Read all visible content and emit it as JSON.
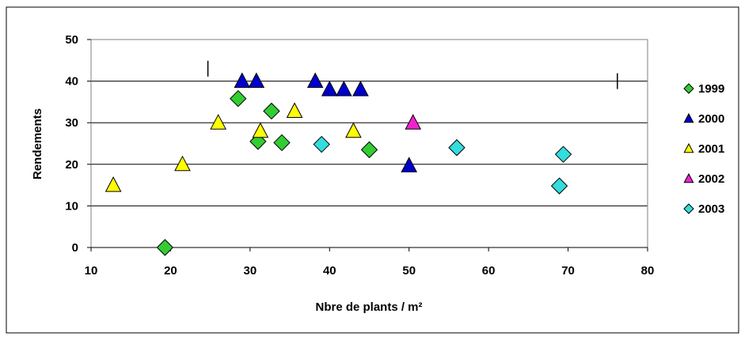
{
  "chart_data": {
    "type": "scatter",
    "title": "",
    "xlabel": "Nbre de plants / m²",
    "ylabel": "Rendements",
    "xlim": [
      10,
      80
    ],
    "ylim": [
      0,
      50
    ],
    "x_ticks": [
      "10",
      "20",
      "30",
      "40",
      "50",
      "60",
      "70",
      "80"
    ],
    "y_ticks": [
      "0",
      "10",
      "20",
      "30",
      "40",
      "50"
    ],
    "grid": "horizontal",
    "legend_position": "right",
    "series": [
      {
        "name": "1999",
        "marker": "diamond",
        "color": "#33cc33",
        "points": [
          [
            19.3,
            0
          ],
          [
            28.5,
            35.8
          ],
          [
            31,
            25.5
          ],
          [
            32.7,
            32.8
          ],
          [
            34,
            25.2
          ],
          [
            45,
            23.5
          ]
        ]
      },
      {
        "name": "2000",
        "marker": "triangle",
        "color": "#0000cc",
        "points": [
          [
            29,
            40
          ],
          [
            30.8,
            40
          ],
          [
            38.2,
            40
          ],
          [
            40,
            38
          ],
          [
            41.8,
            38
          ],
          [
            43.9,
            38
          ],
          [
            50,
            19.7
          ]
        ]
      },
      {
        "name": "2001",
        "marker": "triangle",
        "color": "#ffff00",
        "points": [
          [
            12.8,
            15
          ],
          [
            21.5,
            20
          ],
          [
            26,
            30
          ],
          [
            31.3,
            28
          ],
          [
            35.6,
            32.8
          ],
          [
            43,
            28
          ]
        ]
      },
      {
        "name": "2002",
        "marker": "triangle",
        "color": "#ee22cc",
        "points": [
          [
            50.5,
            30
          ]
        ]
      },
      {
        "name": "2003",
        "marker": "diamond",
        "color": "#33dddd",
        "points": [
          [
            39,
            24.8
          ],
          [
            56,
            24
          ],
          [
            68.9,
            14.8
          ],
          [
            69.4,
            22.4
          ]
        ]
      }
    ],
    "annotations": [
      {
        "text": "|",
        "x": 24.7,
        "y": 43
      },
      {
        "text": "|",
        "x": 76.2,
        "y": 40
      }
    ]
  }
}
